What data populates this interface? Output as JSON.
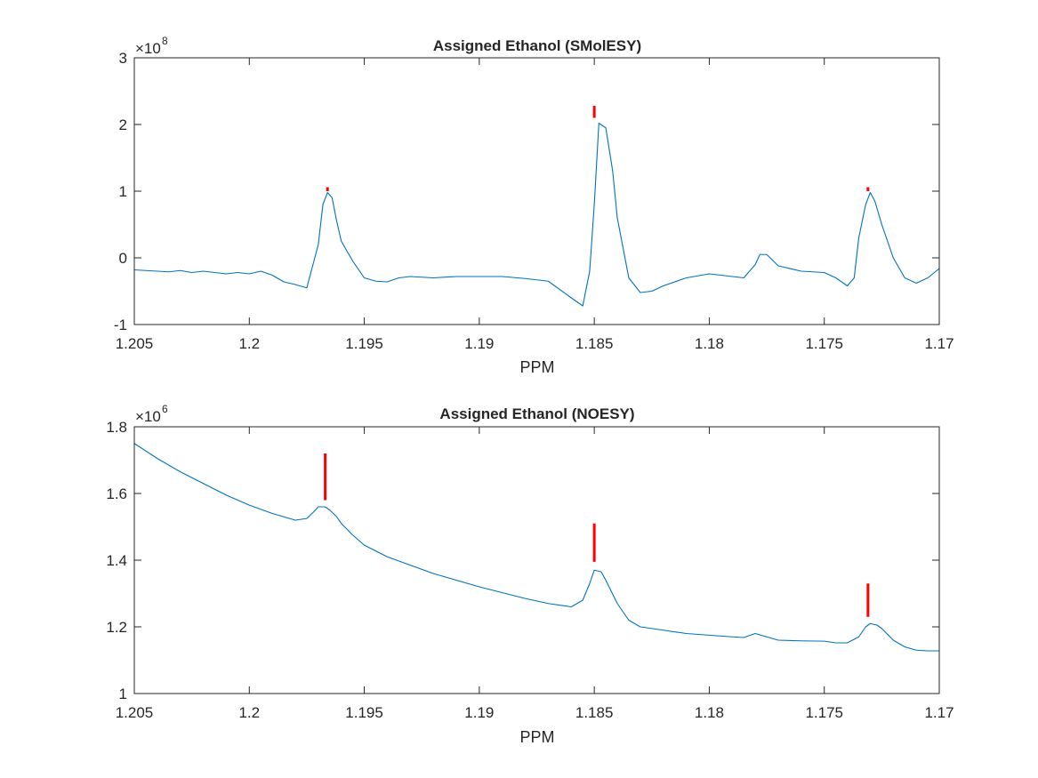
{
  "chart_data": [
    {
      "type": "line",
      "title": "Assigned Ethanol (SMolESY)",
      "xlabel": "PPM",
      "ylabel": "",
      "exponent": "8",
      "xlim": [
        1.205,
        1.17
      ],
      "x_reversed": true,
      "ylim": [
        -1,
        3
      ],
      "xticks": [
        1.205,
        1.2,
        1.195,
        1.19,
        1.185,
        1.18,
        1.175,
        1.17
      ],
      "xtick_labels": [
        "1.205",
        "1.2",
        "1.195",
        "1.19",
        "1.185",
        "1.18",
        "1.175",
        "1.17"
      ],
      "yticks": [
        -1,
        0,
        1,
        2,
        3
      ],
      "ytick_labels": [
        "-1",
        "0",
        "1",
        "2",
        "3"
      ],
      "grid": false,
      "line_color": "#0072bd",
      "marker_color": "#ff0000",
      "series": [
        {
          "x": [
            1.205,
            1.2045,
            1.204,
            1.2035,
            1.203,
            1.2025,
            1.202,
            1.2015,
            1.201,
            1.2005,
            1.2,
            1.1995,
            1.199,
            1.1985,
            1.198,
            1.1975,
            1.197,
            1.1968,
            1.1966,
            1.1964,
            1.1962,
            1.196,
            1.1955,
            1.195,
            1.1945,
            1.194,
            1.1935,
            1.193,
            1.192,
            1.191,
            1.19,
            1.189,
            1.188,
            1.187,
            1.186,
            1.1855,
            1.1852,
            1.185,
            1.1848,
            1.1845,
            1.1842,
            1.184,
            1.1835,
            1.183,
            1.1825,
            1.182,
            1.181,
            1.18,
            1.179,
            1.1785,
            1.178,
            1.1778,
            1.1775,
            1.177,
            1.176,
            1.175,
            1.1745,
            1.174,
            1.1737,
            1.1735,
            1.1732,
            1.173,
            1.1728,
            1.1725,
            1.172,
            1.1715,
            1.171,
            1.1705,
            1.17
          ],
          "y": [
            -0.18,
            -0.19,
            -0.2,
            -0.21,
            -0.19,
            -0.22,
            -0.2,
            -0.22,
            -0.24,
            -0.22,
            -0.24,
            -0.2,
            -0.26,
            -0.36,
            -0.4,
            -0.45,
            0.2,
            0.8,
            0.98,
            0.9,
            0.55,
            0.25,
            -0.05,
            -0.3,
            -0.35,
            -0.36,
            -0.3,
            -0.28,
            -0.3,
            -0.28,
            -0.28,
            -0.28,
            -0.31,
            -0.35,
            -0.6,
            -0.72,
            -0.2,
            0.8,
            2.02,
            1.95,
            1.3,
            0.6,
            -0.3,
            -0.52,
            -0.5,
            -0.42,
            -0.3,
            -0.24,
            -0.28,
            -0.3,
            -0.1,
            0.05,
            0.05,
            -0.12,
            -0.2,
            -0.22,
            -0.3,
            -0.42,
            -0.3,
            0.3,
            0.8,
            0.98,
            0.85,
            0.5,
            0.0,
            -0.3,
            -0.38,
            -0.3,
            -0.16
          ]
        }
      ],
      "markers": [
        {
          "x": 1.1966,
          "y_low": 1.0,
          "y_high": 1.06
        },
        {
          "x": 1.185,
          "y_low": 2.1,
          "y_high": 2.28
        },
        {
          "x": 1.1731,
          "y_low": 1.0,
          "y_high": 1.06
        }
      ]
    },
    {
      "type": "line",
      "title": "Assigned Ethanol (NOESY)",
      "xlabel": "PPM",
      "ylabel": "",
      "exponent": "6",
      "xlim": [
        1.205,
        1.17
      ],
      "x_reversed": true,
      "ylim": [
        1,
        1.8
      ],
      "xticks": [
        1.205,
        1.2,
        1.195,
        1.19,
        1.185,
        1.18,
        1.175,
        1.17
      ],
      "xtick_labels": [
        "1.205",
        "1.2",
        "1.195",
        "1.19",
        "1.185",
        "1.18",
        "1.175",
        "1.17"
      ],
      "yticks": [
        1,
        1.2,
        1.4,
        1.6,
        1.8
      ],
      "ytick_labels": [
        "1",
        "1.2",
        "1.4",
        "1.6",
        "1.8"
      ],
      "grid": false,
      "line_color": "#0072bd",
      "marker_color": "#ff0000",
      "series": [
        {
          "x": [
            1.205,
            1.204,
            1.203,
            1.202,
            1.201,
            1.2,
            1.199,
            1.198,
            1.1975,
            1.1972,
            1.197,
            1.1967,
            1.1965,
            1.1962,
            1.196,
            1.1955,
            1.195,
            1.194,
            1.193,
            1.192,
            1.19,
            1.188,
            1.187,
            1.186,
            1.1855,
            1.1852,
            1.185,
            1.1847,
            1.1845,
            1.184,
            1.1835,
            1.183,
            1.182,
            1.181,
            1.18,
            1.179,
            1.1785,
            1.178,
            1.1775,
            1.177,
            1.176,
            1.175,
            1.1745,
            1.174,
            1.1735,
            1.1732,
            1.173,
            1.1727,
            1.1725,
            1.172,
            1.1715,
            1.171,
            1.1705,
            1.17
          ],
          "y": [
            1.75,
            1.705,
            1.665,
            1.63,
            1.595,
            1.565,
            1.54,
            1.52,
            1.525,
            1.545,
            1.56,
            1.56,
            1.55,
            1.53,
            1.51,
            1.475,
            1.445,
            1.41,
            1.385,
            1.36,
            1.32,
            1.285,
            1.27,
            1.26,
            1.28,
            1.33,
            1.37,
            1.365,
            1.34,
            1.27,
            1.22,
            1.2,
            1.19,
            1.18,
            1.175,
            1.17,
            1.168,
            1.18,
            1.17,
            1.16,
            1.158,
            1.157,
            1.152,
            1.152,
            1.17,
            1.2,
            1.21,
            1.205,
            1.195,
            1.16,
            1.14,
            1.13,
            1.128,
            1.128
          ]
        }
      ],
      "markers": [
        {
          "x": 1.1967,
          "y_low": 1.58,
          "y_high": 1.72
        },
        {
          "x": 1.185,
          "y_low": 1.395,
          "y_high": 1.51
        },
        {
          "x": 1.1731,
          "y_low": 1.23,
          "y_high": 1.33
        }
      ]
    }
  ]
}
